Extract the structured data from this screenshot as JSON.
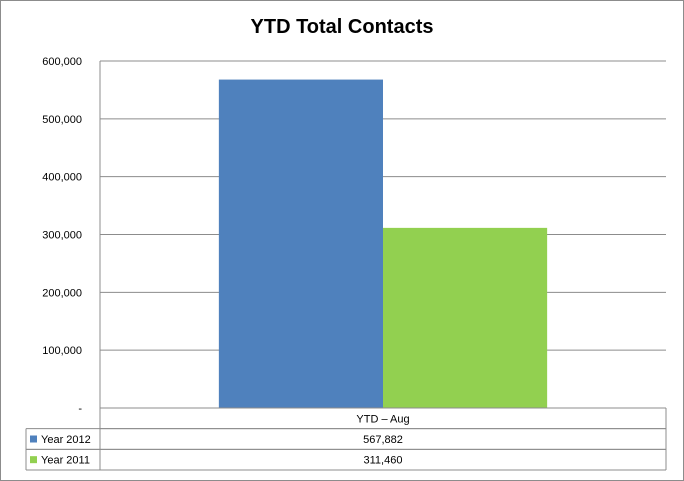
{
  "chart_data": {
    "type": "bar",
    "title": "YTD Total Contacts",
    "xlabel": "",
    "ylabel": "",
    "categories": [
      "YTD – Aug"
    ],
    "series": [
      {
        "name": "Year 2012",
        "values": [
          567882
        ],
        "value_labels": [
          "567,882"
        ],
        "color": "#4f81bd"
      },
      {
        "name": "Year 2011",
        "values": [
          311460
        ],
        "value_labels": [
          "311,460"
        ],
        "color": "#92d050"
      }
    ],
    "ylim": [
      0,
      600000
    ],
    "yticks": [
      0,
      100000,
      200000,
      300000,
      400000,
      500000,
      600000
    ],
    "ytick_labels": [
      "-",
      "100,000",
      "200,000",
      "300,000",
      "400,000",
      "500,000",
      "600,000"
    ],
    "grid": true,
    "legend": "data-table"
  }
}
